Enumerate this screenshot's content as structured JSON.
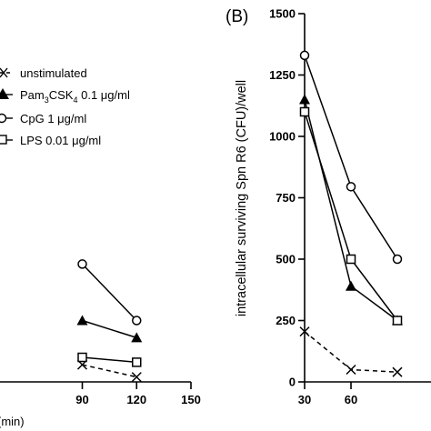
{
  "chart_data": [
    {
      "panel_label": "",
      "type": "line",
      "xlabel": "(min)",
      "ylabel": "",
      "xlim": [
        30,
        150
      ],
      "ylim": [
        0,
        1500
      ],
      "x_ticks": [
        90,
        120,
        150
      ],
      "x_tick_labels": [
        "90",
        "120",
        "150"
      ],
      "legend": {
        "placement": "top-left"
      },
      "series": [
        {
          "name": "unstimulated",
          "marker": "x",
          "dashed": true,
          "x": [
            90,
            120
          ],
          "y": [
            70,
            20
          ]
        },
        {
          "name": "Pam3CSK4 0.1 μg/ml",
          "marker": "triangle",
          "dashed": false,
          "x": [
            90,
            120
          ],
          "y": [
            250,
            180
          ]
        },
        {
          "name": "CpG 1 μg/ml",
          "marker": "circle",
          "dashed": false,
          "x": [
            90,
            120
          ],
          "y": [
            480,
            250
          ]
        },
        {
          "name": "LPS 0.01 μg/ml",
          "marker": "square",
          "dashed": false,
          "x": [
            90,
            120
          ],
          "y": [
            100,
            80
          ]
        }
      ]
    },
    {
      "panel_label": "(B)",
      "type": "line",
      "xlabel": "",
      "ylabel": "intracellular surviving Spn R6 (CFU)/well",
      "xlim": [
        30,
        90
      ],
      "ylim": [
        0,
        1500
      ],
      "y_ticks": [
        0,
        250,
        500,
        750,
        1000,
        1250,
        1500
      ],
      "x_ticks": [
        30,
        60
      ],
      "series": [
        {
          "name": "unstimulated",
          "marker": "x",
          "dashed": true,
          "x": [
            30,
            60,
            90
          ],
          "y": [
            205,
            50,
            40
          ]
        },
        {
          "name": "Pam3CSK4 0.1 μg/ml",
          "marker": "triangle",
          "dashed": false,
          "x": [
            30,
            60,
            90
          ],
          "y": [
            1150,
            390,
            250
          ]
        },
        {
          "name": "CpG 1 μg/ml",
          "marker": "circle",
          "dashed": false,
          "x": [
            30,
            60,
            90
          ],
          "y": [
            1330,
            795,
            500
          ]
        },
        {
          "name": "LPS 0.01 μg/ml",
          "marker": "square",
          "dashed": false,
          "x": [
            30,
            60,
            90
          ],
          "y": [
            1100,
            500,
            250
          ]
        }
      ]
    }
  ]
}
